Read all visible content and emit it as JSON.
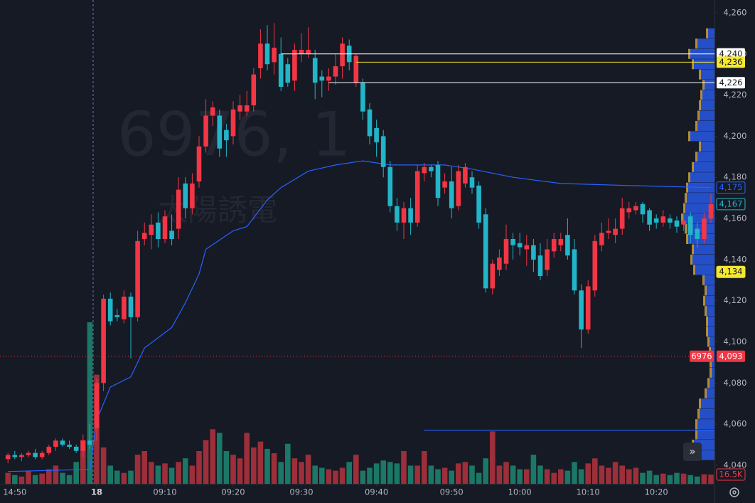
{
  "chart_data": {
    "type": "candlestick",
    "watermark": {
      "symbol": "6976, 1",
      "name": "太陽誘電"
    },
    "ylim": [
      4031,
      4265
    ],
    "yticks": [
      {
        "value": 4040,
        "label": "4,040"
      },
      {
        "value": 4060,
        "label": "4,060"
      },
      {
        "value": 4080,
        "label": "4,080"
      },
      {
        "value": 4100,
        "label": "4,100"
      },
      {
        "value": 4120,
        "label": "4,120"
      },
      {
        "value": 4140,
        "label": "4,140"
      },
      {
        "value": 4160,
        "label": "4,160"
      },
      {
        "value": 4180,
        "label": "4,180"
      },
      {
        "value": 4200,
        "label": "4,200"
      },
      {
        "value": 4220,
        "label": "4,220"
      },
      {
        "value": 4240,
        "label": "4,240"
      },
      {
        "value": 4260,
        "label": "4,260"
      }
    ],
    "xticks": [
      {
        "value": 1,
        "label": "14:50"
      },
      {
        "value": 13,
        "label": "18"
      },
      {
        "value": 23,
        "label": "09:10"
      },
      {
        "value": 33,
        "label": "09:20"
      },
      {
        "value": 43,
        "label": "09:30"
      },
      {
        "value": 54,
        "label": "09:40"
      },
      {
        "value": 65,
        "label": "09:50"
      },
      {
        "value": 75,
        "label": "10:00"
      },
      {
        "value": 85,
        "label": "10:10"
      },
      {
        "value": 95,
        "label": "10:20"
      }
    ],
    "up_color": "#f23645",
    "down_color": "#22b5c8",
    "volume_up_color": "#9c2f3a",
    "volume_down_color": "#1b7766",
    "open": [
      4043,
      4045,
      4044,
      4045,
      4046,
      4044,
      4046,
      4049,
      4052,
      4050,
      4049,
      4047,
      4052,
      4058,
      4080,
      4121,
      4113,
      4111,
      4122,
      4112,
      4150,
      4152,
      4158,
      4150,
      4154,
      4155,
      4177,
      4165,
      4178,
      4195,
      4210,
      4210,
      4203,
      4200,
      4212,
      4212,
      4215,
      4233,
      4245,
      4236,
      4240,
      4235,
      4227,
      4240,
      4240,
      4238,
      4229,
      4227,
      4229,
      4234,
      4244,
      4226,
      4226,
      4213,
      4204,
      4200,
      4185,
      4166,
      4158,
      4165,
      4158,
      4182,
      4185,
      4186,
      4175,
      4178,
      4166,
      4177,
      4180,
      4176,
      4162,
      4126,
      4135,
      4138,
      4150,
      4148,
      4145,
      4147,
      4142,
      4135,
      4144,
      4147,
      4152,
      4145,
      4125,
      4106,
      4125,
      4147,
      4153,
      4152,
      4155,
      4163,
      4164,
      4167,
      4164,
      4160,
      4158,
      4160,
      4159,
      4157,
      4161,
      4155,
      4150,
      4160
    ],
    "high": [
      4046,
      4047,
      4046,
      4047,
      4048,
      4047,
      4050,
      4053,
      4053,
      4052,
      4050,
      4055,
      4060,
      4082,
      4123,
      4124,
      4116,
      4125,
      4124,
      4154,
      4158,
      4162,
      4163,
      4164,
      4162,
      4180,
      4180,
      4182,
      4200,
      4218,
      4217,
      4213,
      4206,
      4217,
      4220,
      4222,
      4233,
      4252,
      4254,
      4255,
      4248,
      4238,
      4245,
      4250,
      4253,
      4242,
      4232,
      4233,
      4240,
      4248,
      4247,
      4240,
      4228,
      4216,
      4208,
      4203,
      4188,
      4170,
      4168,
      4170,
      4186,
      4187,
      4186,
      4188,
      4182,
      4185,
      4186,
      4187,
      4183,
      4178,
      4165,
      4140,
      4145,
      4157,
      4153,
      4153,
      4152,
      4150,
      4148,
      4150,
      4153,
      4153,
      4160,
      4150,
      4128,
      4130,
      4152,
      4158,
      4160,
      4160,
      4170,
      4168,
      4168,
      4168,
      4165,
      4162,
      4164,
      4162,
      4161,
      4162,
      4163,
      4158,
      4163,
      4172
    ],
    "low": [
      4041,
      4043,
      4042,
      4044,
      4043,
      4043,
      4045,
      4047,
      4049,
      4048,
      4046,
      4044,
      4048,
      4052,
      4076,
      4108,
      4110,
      4109,
      4092,
      4110,
      4147,
      4145,
      4146,
      4148,
      4147,
      4150,
      4160,
      4162,
      4175,
      4192,
      4205,
      4190,
      4190,
      4196,
      4208,
      4210,
      4212,
      4228,
      4232,
      4230,
      4222,
      4224,
      4222,
      4236,
      4238,
      4218,
      4219,
      4222,
      4225,
      4228,
      4232,
      4224,
      4208,
      4196,
      4190,
      4180,
      4163,
      4154,
      4150,
      4152,
      4156,
      4178,
      4180,
      4166,
      4172,
      4160,
      4164,
      4175,
      4172,
      4155,
      4124,
      4123,
      4132,
      4135,
      4140,
      4142,
      4137,
      4134,
      4130,
      4132,
      4141,
      4144,
      4140,
      4123,
      4097,
      4104,
      4122,
      4144,
      4150,
      4148,
      4152,
      4160,
      4162,
      4158,
      4154,
      4155,
      4156,
      4155,
      4153,
      4154,
      4148,
      4146,
      4148,
      4158
    ],
    "close": [
      4045,
      4044,
      4045,
      4046,
      4044,
      4046,
      4049,
      4052,
      4050,
      4049,
      4047,
      4052,
      4050,
      4080,
      4121,
      4110,
      4112,
      4122,
      4112,
      4149,
      4153,
      4157,
      4150,
      4161,
      4150,
      4174,
      4165,
      4177,
      4195,
      4210,
      4214,
      4194,
      4198,
      4213,
      4215,
      4215,
      4230,
      4245,
      4235,
      4243,
      4224,
      4226,
      4242,
      4242,
      4242,
      4226,
      4227,
      4229,
      4234,
      4245,
      4236,
      4239,
      4212,
      4200,
      4197,
      4185,
      4166,
      4158,
      4165,
      4158,
      4183,
      4185,
      4183,
      4170,
      4178,
      4165,
      4183,
      4185,
      4175,
      4158,
      4126,
      4138,
      4141,
      4150,
      4147,
      4146,
      4147,
      4140,
      4132,
      4145,
      4150,
      4150,
      4142,
      4125,
      4106,
      4127,
      4149,
      4153,
      4154,
      4155,
      4165,
      4165,
      4166,
      4162,
      4157,
      4158,
      4161,
      4158,
      4156,
      4159,
      4152,
      4150,
      4160,
      4167
    ],
    "volume": [
      19500,
      15600,
      13000,
      23400,
      15600,
      18200,
      26000,
      32500,
      19500,
      15600,
      39000,
      78000,
      288600,
      195000,
      65000,
      32500,
      23400,
      19500,
      23400,
      52000,
      58500,
      39000,
      32500,
      36400,
      28600,
      39000,
      45500,
      32500,
      58500,
      78000,
      97500,
      91000,
      58500,
      52000,
      45500,
      91000,
      65000,
      75400,
      62400,
      54600,
      39000,
      71500,
      45500,
      39000,
      52000,
      32500,
      28600,
      26000,
      23400,
      28600,
      39000,
      52000,
      23400,
      28600,
      36400,
      41600,
      39000,
      36400,
      58500,
      32500,
      32500,
      58500,
      32500,
      26000,
      28600,
      23400,
      36400,
      39000,
      32500,
      19500,
      45500,
      93600,
      32500,
      39000,
      32500,
      26000,
      26000,
      52000,
      32500,
      26000,
      19500,
      26000,
      23400,
      39000,
      26000,
      36400,
      45500,
      32500,
      28600,
      39000,
      32500,
      26000,
      28600,
      19500,
      23400,
      15600,
      18200,
      15600,
      19500,
      18200,
      15600,
      13000,
      16900,
      16500
    ],
    "volume_lim": [
      0,
      860000
    ],
    "last_volume_label": "16.5K",
    "ma": {
      "color": "#2962ff",
      "x": [
        0,
        12,
        13,
        14,
        15,
        18,
        20,
        24,
        26,
        28,
        29,
        33,
        35,
        38,
        40,
        44,
        48,
        52,
        56,
        64,
        68,
        74,
        81,
        91,
        103
      ],
      "values": [
        4037,
        4038,
        4062,
        4070,
        4078,
        4083,
        4097,
        4107,
        4119,
        4133,
        4145,
        4154,
        4156,
        4169,
        4175,
        4183,
        4186,
        4188,
        4186,
        4186,
        4184,
        4180,
        4177,
        4176,
        4175
      ]
    },
    "volume_profile": {
      "prices": [
        4045,
        4050,
        4055,
        4060,
        4065,
        4070,
        4075,
        4080,
        4085,
        4090,
        4095,
        4100,
        4105,
        4110,
        4115,
        4120,
        4125,
        4130,
        4135,
        4140,
        4145,
        4150,
        4155,
        4160,
        4165,
        4170,
        4175,
        4180,
        4185,
        4190,
        4195,
        4200,
        4205,
        4210,
        4215,
        4220,
        4225,
        4230,
        4235,
        4240,
        4245,
        4250
      ],
      "values": [
        35,
        30,
        25,
        25,
        22,
        20,
        12,
        8,
        5,
        5,
        6,
        8,
        10,
        10,
        12,
        14,
        12,
        15,
        28,
        32,
        30,
        38,
        40,
        45,
        42,
        40,
        38,
        35,
        30,
        25,
        20,
        35,
        25,
        22,
        20,
        18,
        15,
        20,
        30,
        35,
        25,
        10
      ]
    },
    "price_lines": [
      {
        "value": 4240,
        "label": "4,240",
        "color": "#ffffff",
        "start": 40
      },
      {
        "value": 4236,
        "label": "4,236",
        "color": "#f5e72e",
        "start": 51
      },
      {
        "value": 4226,
        "label": "4,226",
        "color": "#ffffff",
        "start": 47
      }
    ],
    "low_line": {
      "value": 4057,
      "start": 61,
      "color": "#2962ff"
    },
    "axis_labels": [
      {
        "value": 4175,
        "label": "4,175",
        "style": "outline",
        "color": "#2962ff"
      },
      {
        "value": 4167,
        "label": "4,167",
        "style": "outline",
        "color": "#22b5c8"
      },
      {
        "value": 4134,
        "label": "4,134",
        "style": "fill",
        "color": "#f5e72e"
      }
    ],
    "prev_close": {
      "value": 4093,
      "label": "4,093",
      "symbol": "6976",
      "color": "#f23645"
    }
  }
}
